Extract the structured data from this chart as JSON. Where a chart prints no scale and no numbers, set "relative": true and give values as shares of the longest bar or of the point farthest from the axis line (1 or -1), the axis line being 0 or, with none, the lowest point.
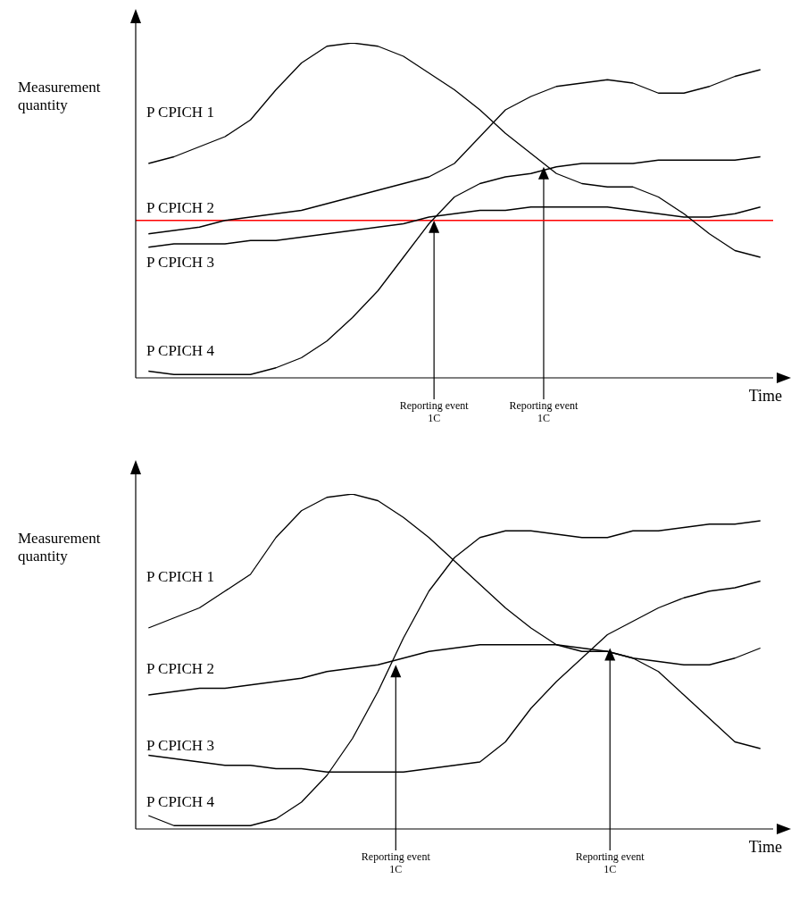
{
  "chart_data": [
    {
      "type": "line",
      "relative": true,
      "ylabel": "Measurement quantity",
      "xlabel": "Time",
      "categories": [
        null,
        null,
        null,
        null,
        null,
        null,
        null,
        null,
        null,
        null,
        null,
        null,
        null,
        null,
        null,
        null,
        null,
        null,
        null,
        null,
        null,
        null,
        null,
        null,
        null
      ],
      "series": [
        {
          "name": "P CPICH 1",
          "color": "#000000",
          "values": [
            0.64,
            0.66,
            0.69,
            0.72,
            0.77,
            0.86,
            0.94,
            0.99,
            1.0,
            0.99,
            0.96,
            0.91,
            0.86,
            0.8,
            0.73,
            0.67,
            0.61,
            0.58,
            0.57,
            0.57,
            0.54,
            0.49,
            0.43,
            0.38,
            0.36
          ]
        },
        {
          "name": "P CPICH 2",
          "color": "#000000",
          "values": [
            0.43,
            0.44,
            0.45,
            0.47,
            0.48,
            0.49,
            0.5,
            0.52,
            0.54,
            0.56,
            0.58,
            0.6,
            0.64,
            0.72,
            0.8,
            0.84,
            0.87,
            0.88,
            0.89,
            0.88,
            0.85,
            0.85,
            0.87,
            0.9,
            0.92
          ]
        },
        {
          "name": "P CPICH 3",
          "color": "#000000",
          "values": [
            0.39,
            0.4,
            0.4,
            0.4,
            0.41,
            0.41,
            0.42,
            0.43,
            0.44,
            0.45,
            0.46,
            0.48,
            0.49,
            0.5,
            0.5,
            0.51,
            0.51,
            0.51,
            0.51,
            0.5,
            0.49,
            0.48,
            0.48,
            0.49,
            0.51
          ]
        },
        {
          "name": "P CPICH 4",
          "color": "#000000",
          "values": [
            0.02,
            0.01,
            0.01,
            0.01,
            0.01,
            0.03,
            0.06,
            0.11,
            0.18,
            0.26,
            0.36,
            0.46,
            0.54,
            0.58,
            0.6,
            0.61,
            0.63,
            0.64,
            0.64,
            0.64,
            0.65,
            0.65,
            0.65,
            0.65,
            0.66
          ]
        }
      ],
      "ref_lines": [
        {
          "axis": "y",
          "value": 0.47,
          "color": "#ff0000"
        }
      ],
      "annotations": [
        "Reporting event 1C",
        "Reporting event 1C"
      ]
    },
    {
      "type": "line",
      "relative": true,
      "ylabel": "Measurement quantity",
      "xlabel": "Time",
      "categories": [
        null,
        null,
        null,
        null,
        null,
        null,
        null,
        null,
        null,
        null,
        null,
        null,
        null,
        null,
        null,
        null,
        null,
        null,
        null,
        null,
        null,
        null,
        null,
        null,
        null
      ],
      "series": [
        {
          "name": "P CPICH 1",
          "color": "#000000",
          "values": [
            0.6,
            0.63,
            0.66,
            0.71,
            0.76,
            0.87,
            0.95,
            0.99,
            1.0,
            0.98,
            0.93,
            0.87,
            0.8,
            0.73,
            0.66,
            0.6,
            0.55,
            0.53,
            0.53,
            0.51,
            0.47,
            0.4,
            0.33,
            0.26,
            0.24
          ]
        },
        {
          "name": "P CPICH 2",
          "color": "#000000",
          "values": [
            0.4,
            0.41,
            0.42,
            0.42,
            0.43,
            0.44,
            0.45,
            0.47,
            0.48,
            0.49,
            0.51,
            0.53,
            0.54,
            0.55,
            0.55,
            0.55,
            0.55,
            0.54,
            0.53,
            0.51,
            0.5,
            0.49,
            0.49,
            0.51,
            0.54
          ]
        },
        {
          "name": "P CPICH 3",
          "color": "#000000",
          "values": [
            0.22,
            0.21,
            0.2,
            0.19,
            0.19,
            0.18,
            0.18,
            0.17,
            0.17,
            0.17,
            0.17,
            0.18,
            0.19,
            0.2,
            0.26,
            0.36,
            0.44,
            0.51,
            0.58,
            0.62,
            0.66,
            0.69,
            0.71,
            0.72,
            0.74
          ]
        },
        {
          "name": "P CPICH 4",
          "color": "#000000",
          "values": [
            0.04,
            0.01,
            0.01,
            0.01,
            0.01,
            0.03,
            0.08,
            0.16,
            0.27,
            0.41,
            0.57,
            0.71,
            0.81,
            0.87,
            0.89,
            0.89,
            0.88,
            0.87,
            0.87,
            0.89,
            0.89,
            0.9,
            0.91,
            0.91,
            0.92
          ]
        }
      ],
      "annotations": [
        "Reporting event 1C",
        "Reporting event 1C"
      ]
    }
  ]
}
